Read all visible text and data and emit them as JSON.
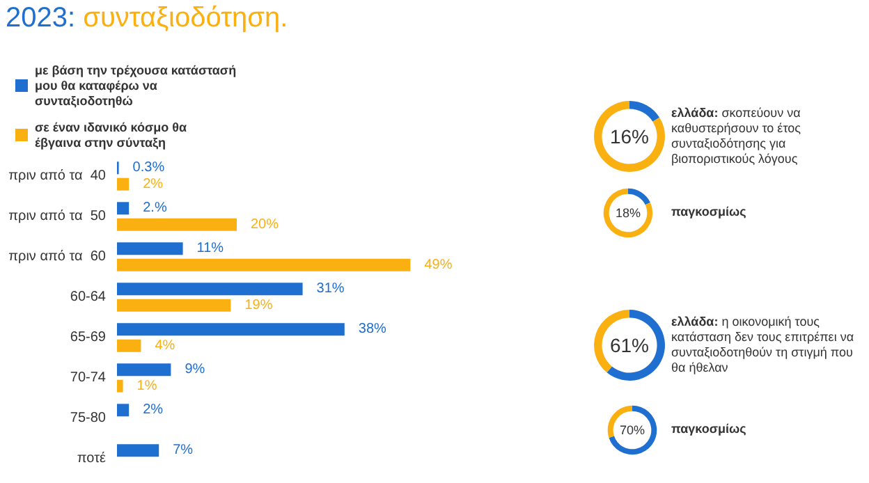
{
  "chart_data": [
    {
      "type": "bar",
      "orientation": "horizontal",
      "title": "2023:",
      "subtitle": "συνταξιοδότηση.",
      "categories": [
        "πριν από τα  40",
        "πριν από τα  50",
        "πριν από τα  60",
        "60-64",
        "65-69",
        "70-74",
        "75-80",
        "ποτέ"
      ],
      "legend": "top left",
      "series": [
        {
          "name": "με βάση την τρέχουσα κατάστασή μου θα καταφέρω να συνταξιοδοτηθώ",
          "color": "#1f6fd1",
          "values": [
            0.3,
            2,
            11,
            31,
            38,
            9,
            2,
            7
          ],
          "value_labels": [
            "0.3%",
            "2.%",
            "11%",
            "31%",
            "38%",
            "9%",
            "2%",
            "7%"
          ]
        },
        {
          "name": "σε έναν ιδανικό κόσμο θα έβγαινα στην σύνταξη",
          "color": "#f9b010",
          "values": [
            2,
            20,
            49,
            19,
            4,
            1,
            0,
            0
          ],
          "value_labels": [
            "2%",
            "20%",
            "49%",
            "19%",
            "4%",
            "1%",
            null,
            null
          ]
        }
      ]
    },
    {
      "type": "donut",
      "title": "ελλάδα:  σκοπεύουν να καθυστερήσουν το έτος συνταξιοδότησης για βιοποριστικούς λόγους",
      "categories": [
        null,
        null
      ],
      "values": [
        16,
        84
      ],
      "colors": [
        "#1f6fd1",
        "#f9b010"
      ],
      "value_labels": [
        "16%",
        null
      ]
    },
    {
      "type": "donut",
      "title": "παγκοσμίως",
      "categories": [
        null,
        null
      ],
      "values": [
        18,
        82
      ],
      "colors": [
        "#1f6fd1",
        "#f9b010"
      ],
      "value_labels": [
        "18%",
        null
      ]
    },
    {
      "type": "donut",
      "title": "ελλάδα: η οικονομική τους κατάσταση δεν τους επιτρέπει να συνταξιοδοτηθούν τη στιγμή που θα ήθελαν",
      "categories": [
        null,
        null
      ],
      "values": [
        61,
        39
      ],
      "colors": [
        "#1f6fd1",
        "#f9b010"
      ],
      "value_labels": [
        "61%",
        null
      ]
    },
    {
      "type": "donut",
      "title": "παγκοσμίως",
      "categories": [
        null,
        null
      ],
      "values": [
        70,
        30
      ],
      "colors": [
        "#1f6fd1",
        "#f9b010"
      ],
      "value_labels": [
        "70%",
        null
      ]
    }
  ]
}
